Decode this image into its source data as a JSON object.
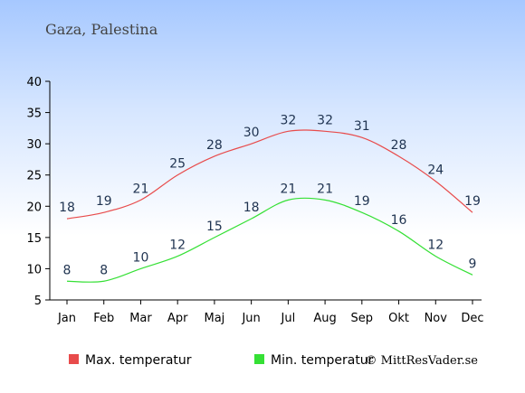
{
  "chart_data": {
    "type": "line",
    "title": "Gaza, Palestina",
    "categories": [
      "Jan",
      "Feb",
      "Mar",
      "Apr",
      "Maj",
      "Jun",
      "Jul",
      "Aug",
      "Sep",
      "Okt",
      "Nov",
      "Dec"
    ],
    "series": [
      {
        "name": "Max. temperatur",
        "color": "#e84b4b",
        "values": [
          18,
          19,
          21,
          25,
          28,
          30,
          32,
          32,
          31,
          28,
          24,
          19
        ]
      },
      {
        "name": "Min. temperatur",
        "color": "#35e035",
        "values": [
          8,
          8,
          10,
          12,
          15,
          18,
          21,
          21,
          19,
          16,
          12,
          9
        ]
      }
    ],
    "yticks": [
      5,
      10,
      15,
      20,
      25,
      30,
      35,
      40
    ],
    "ylim": [
      5,
      40
    ],
    "grid": false,
    "legend": "bottom-left"
  },
  "credit": "© MittResVader.se"
}
